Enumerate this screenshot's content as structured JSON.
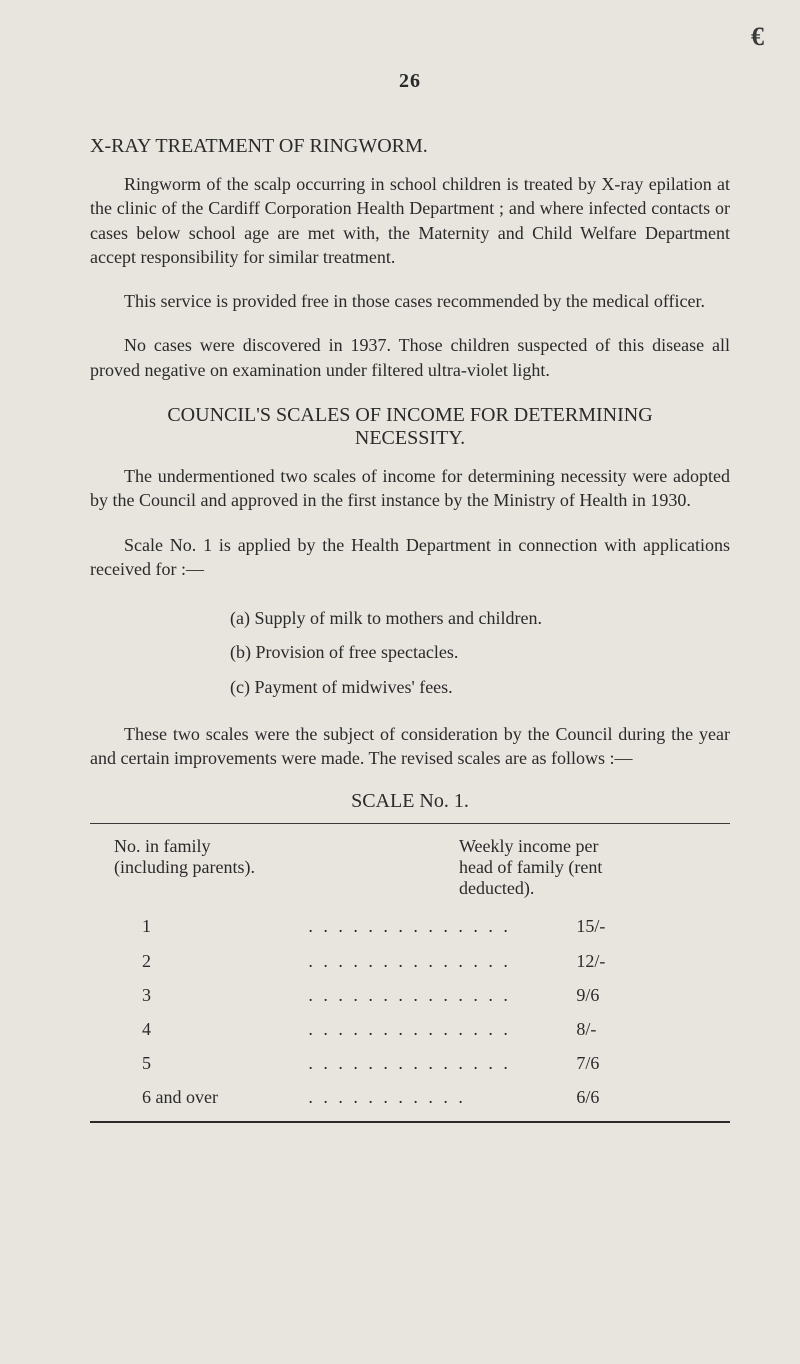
{
  "corner_mark": "€",
  "page_number": "26",
  "section": {
    "heading": "X-RAY TREATMENT OF RINGWORM.",
    "p1": "Ringworm of the scalp occurring in school children is treated by X-ray epilation at the clinic of the Cardiff Corporation Health Department ; and where infected contacts or cases below school age are met with, the Maternity and Child Welfare Department accept responsibility for similar treatment.",
    "p2": "This service is provided free in those cases recommended by the medical officer.",
    "p3": "No cases were discovered in 1937. Those children suspected of this disease all proved negative on examination under filtered ultra-violet light."
  },
  "council": {
    "heading_line1": "COUNCIL'S SCALES OF INCOME FOR DETERMINING",
    "heading_line2": "NECESSITY.",
    "p1": "The undermentioned two scales of income for determining necessity were adopted by the Council and approved in the first instance by the Ministry of Health in 1930.",
    "p2": "Scale No. 1 is applied by the Health Department in connection with applications received for :—",
    "list": {
      "a": "(a)  Supply of milk to mothers and children.",
      "b": "(b)  Provision of free spectacles.",
      "c": "(c)  Payment of midwives' fees."
    },
    "p3": "These two scales were the subject of consideration by the Council during the year and certain improvements were made. The revised scales are as follows :—"
  },
  "scale": {
    "title": "SCALE No. 1.",
    "header_left_l1": "No. in family",
    "header_left_l2": "(including parents).",
    "header_right_l1": "Weekly income per",
    "header_right_l2": "head of family (rent",
    "header_right_l3": "deducted).",
    "rows": [
      {
        "label": "1",
        "value": "15/-"
      },
      {
        "label": "2",
        "value": "12/-"
      },
      {
        "label": "3",
        "value": "9/6"
      },
      {
        "label": "4",
        "value": "8/-"
      },
      {
        "label": "5",
        "value": "7/6"
      },
      {
        "label": "6 and over",
        "value": "6/6"
      }
    ]
  },
  "dots": ". . . . . . . . . . . . . .",
  "dots_short": ". . . . . . . . . . ."
}
